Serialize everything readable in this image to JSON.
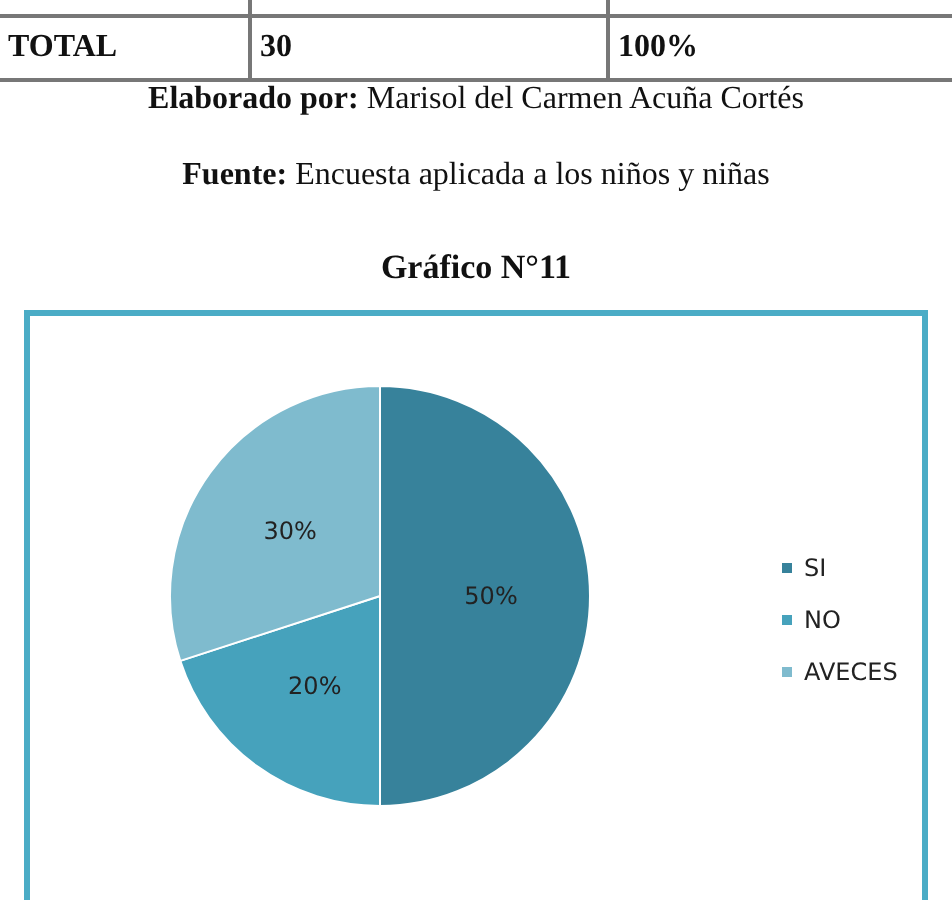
{
  "chart_data": {
    "type": "pie",
    "title": "Gráfico N°11",
    "categories": [
      "SI",
      "NO",
      "AVECES"
    ],
    "values": [
      50,
      20,
      30
    ],
    "colors": [
      "#37829b",
      "#46a2bc",
      "#7fbbce"
    ],
    "value_labels": [
      "50%",
      "20%",
      "30%"
    ],
    "legend": "right",
    "annotations": [
      "TOTAL",
      "30",
      "100%",
      "Elaborado por: Marisol del Carmen Acuña Cortés",
      "Fuente: Encuesta aplicada a los niños y niñas"
    ]
  }
}
